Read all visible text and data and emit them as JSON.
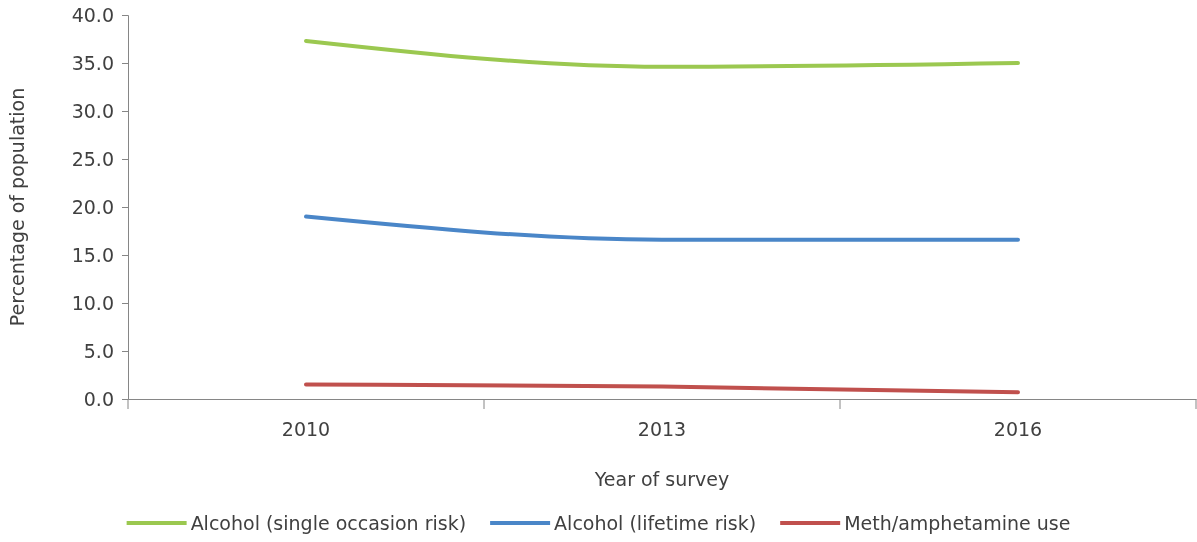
{
  "chart_data": {
    "type": "line",
    "xlabel": "Year of survey",
    "ylabel": "Percentage of population",
    "categories": [
      "2010",
      "2013",
      "2016"
    ],
    "ylim": [
      0,
      40
    ],
    "yticks": [
      {
        "value": 0,
        "label": "0.0"
      },
      {
        "value": 5,
        "label": "5.0"
      },
      {
        "value": 10,
        "label": "10.0"
      },
      {
        "value": 15,
        "label": "15.0"
      },
      {
        "value": 20,
        "label": "20.0"
      },
      {
        "value": 25,
        "label": "25.0"
      },
      {
        "value": 30,
        "label": "30.0"
      },
      {
        "value": 35,
        "label": "35.0"
      },
      {
        "value": 40,
        "label": "40.0"
      }
    ],
    "series": [
      {
        "name": "Alcohol (single occasion risk)",
        "color": "#9bc850",
        "values": [
          37.3,
          34.6,
          35.0
        ]
      },
      {
        "name": "Alcohol (lifetime risk)",
        "color": "#4a86c8",
        "values": [
          19.0,
          16.6,
          16.6
        ]
      },
      {
        "name": "Meth/amphetamine use",
        "color": "#c0504d",
        "values": [
          1.5,
          1.3,
          0.7
        ]
      }
    ],
    "legend": "bottom",
    "grid": false,
    "marker": "none",
    "line_style": "solid"
  }
}
